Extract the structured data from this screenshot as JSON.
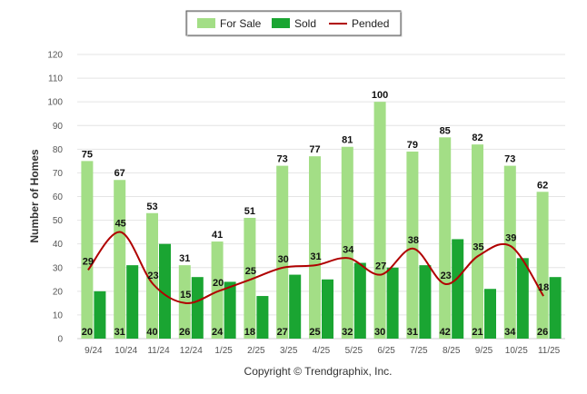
{
  "chart_data": {
    "type": "bar",
    "title": "",
    "xlabel": "",
    "ylabel": "Number of Homes",
    "ylim": [
      0,
      120
    ],
    "yticks": [
      "0",
      "10",
      "20",
      "30",
      "40",
      "50",
      "60",
      "70",
      "80",
      "90",
      "100",
      "110",
      "120"
    ],
    "categories": [
      "9/24",
      "10/24",
      "11/24",
      "12/24",
      "1/25",
      "2/25",
      "3/25",
      "4/25",
      "5/25",
      "6/25",
      "7/25",
      "8/25",
      "9/25",
      "10/25",
      "11/25"
    ],
    "series": [
      {
        "name": "For Sale",
        "kind": "bar",
        "color": "#a3de86",
        "values": [
          75,
          67,
          53,
          31,
          41,
          51,
          73,
          77,
          81,
          100,
          79,
          85,
          82,
          73,
          62
        ]
      },
      {
        "name": "Sold",
        "kind": "bar",
        "color": "#1aa532",
        "values": [
          20,
          31,
          40,
          26,
          24,
          18,
          27,
          25,
          32,
          30,
          31,
          42,
          21,
          34,
          26
        ]
      },
      {
        "name": "Pended",
        "kind": "line",
        "color": "#b00000",
        "values": [
          29,
          45,
          23,
          15,
          20,
          25,
          30,
          31,
          34,
          27,
          38,
          23,
          35,
          39,
          18
        ]
      }
    ],
    "grid": true,
    "legend": "top-center",
    "footer": "Copyright © Trendgraphix, Inc."
  }
}
